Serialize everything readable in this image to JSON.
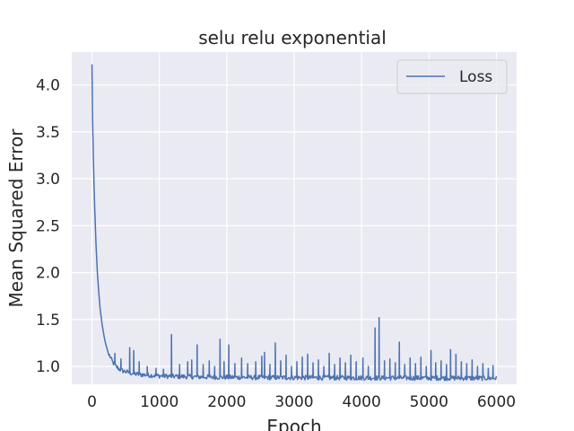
{
  "chart_data": {
    "type": "line",
    "title": "selu relu exponential",
    "xlabel": "Epoch",
    "ylabel": "Mean Squared Error",
    "xlim": [
      -300,
      6300
    ],
    "ylim": [
      0.81,
      4.35
    ],
    "xticks": [
      0,
      1000,
      2000,
      3000,
      4000,
      5000,
      6000
    ],
    "yticks": [
      1.0,
      1.5,
      2.0,
      2.5,
      3.0,
      3.5,
      4.0
    ],
    "xtick_labels": [
      "0",
      "1000",
      "2000",
      "3000",
      "4000",
      "5000",
      "6000"
    ],
    "ytick_labels": [
      "1.0",
      "1.5",
      "2.0",
      "2.5",
      "3.0",
      "3.5",
      "4.0"
    ],
    "grid": true,
    "legend_position": "top-right",
    "series": [
      {
        "name": "Loss",
        "color": "#4c72b0",
        "x": [
          0,
          5,
          10,
          20,
          30,
          40,
          50,
          60,
          80,
          100,
          120,
          150,
          180,
          200,
          250,
          300,
          350,
          400,
          450,
          500,
          550,
          600,
          700,
          800,
          900,
          1000,
          1200,
          1500,
          2000,
          2500,
          3000,
          3500,
          4000,
          4500,
          5000,
          5500,
          6000
        ],
        "values": [
          4.22,
          3.9,
          3.6,
          3.25,
          2.95,
          2.7,
          2.5,
          2.3,
          2.0,
          1.8,
          1.62,
          1.45,
          1.32,
          1.25,
          1.12,
          1.04,
          0.99,
          0.96,
          0.94,
          0.93,
          0.92,
          0.91,
          0.9,
          0.895,
          0.89,
          0.885,
          0.88,
          0.875,
          0.87,
          0.868,
          0.866,
          0.865,
          0.864,
          0.863,
          0.862,
          0.861,
          0.86
        ],
        "spikes": [
          {
            "x": 340,
            "y": 1.14
          },
          {
            "x": 430,
            "y": 1.08
          },
          {
            "x": 560,
            "y": 1.2
          },
          {
            "x": 620,
            "y": 1.17
          },
          {
            "x": 700,
            "y": 1.05
          },
          {
            "x": 820,
            "y": 1.0
          },
          {
            "x": 950,
            "y": 0.98
          },
          {
            "x": 1060,
            "y": 0.97
          },
          {
            "x": 1180,
            "y": 1.34
          },
          {
            "x": 1300,
            "y": 1.02
          },
          {
            "x": 1420,
            "y": 1.05
          },
          {
            "x": 1480,
            "y": 1.07
          },
          {
            "x": 1560,
            "y": 1.23
          },
          {
            "x": 1650,
            "y": 1.02
          },
          {
            "x": 1740,
            "y": 1.06
          },
          {
            "x": 1820,
            "y": 1.0
          },
          {
            "x": 1900,
            "y": 1.29
          },
          {
            "x": 1960,
            "y": 1.05
          },
          {
            "x": 2030,
            "y": 1.23
          },
          {
            "x": 2120,
            "y": 1.03
          },
          {
            "x": 2220,
            "y": 1.09
          },
          {
            "x": 2310,
            "y": 1.03
          },
          {
            "x": 2430,
            "y": 1.05
          },
          {
            "x": 2520,
            "y": 1.11
          },
          {
            "x": 2560,
            "y": 1.15
          },
          {
            "x": 2640,
            "y": 1.02
          },
          {
            "x": 2720,
            "y": 1.25
          },
          {
            "x": 2800,
            "y": 1.06
          },
          {
            "x": 2880,
            "y": 1.12
          },
          {
            "x": 2960,
            "y": 1.0
          },
          {
            "x": 3040,
            "y": 1.05
          },
          {
            "x": 3120,
            "y": 1.1
          },
          {
            "x": 3200,
            "y": 1.13
          },
          {
            "x": 3280,
            "y": 1.04
          },
          {
            "x": 3360,
            "y": 1.07
          },
          {
            "x": 3440,
            "y": 1.0
          },
          {
            "x": 3520,
            "y": 1.14
          },
          {
            "x": 3600,
            "y": 1.02
          },
          {
            "x": 3680,
            "y": 1.09
          },
          {
            "x": 3760,
            "y": 1.04
          },
          {
            "x": 3840,
            "y": 1.12
          },
          {
            "x": 3920,
            "y": 1.05
          },
          {
            "x": 4020,
            "y": 1.09
          },
          {
            "x": 4100,
            "y": 1.0
          },
          {
            "x": 4200,
            "y": 1.41
          },
          {
            "x": 4260,
            "y": 1.52
          },
          {
            "x": 4340,
            "y": 1.06
          },
          {
            "x": 4420,
            "y": 1.08
          },
          {
            "x": 4500,
            "y": 1.04
          },
          {
            "x": 4560,
            "y": 1.26
          },
          {
            "x": 4640,
            "y": 1.02
          },
          {
            "x": 4720,
            "y": 1.09
          },
          {
            "x": 4800,
            "y": 1.03
          },
          {
            "x": 4880,
            "y": 1.1
          },
          {
            "x": 4960,
            "y": 1.0
          },
          {
            "x": 5030,
            "y": 1.17
          },
          {
            "x": 5100,
            "y": 1.04
          },
          {
            "x": 5180,
            "y": 1.06
          },
          {
            "x": 5260,
            "y": 1.02
          },
          {
            "x": 5320,
            "y": 1.18
          },
          {
            "x": 5400,
            "y": 1.13
          },
          {
            "x": 5480,
            "y": 1.05
          },
          {
            "x": 5560,
            "y": 1.03
          },
          {
            "x": 5640,
            "y": 1.07
          },
          {
            "x": 5720,
            "y": 1.0
          },
          {
            "x": 5800,
            "y": 1.03
          },
          {
            "x": 5880,
            "y": 0.98
          },
          {
            "x": 5950,
            "y": 1.01
          }
        ]
      }
    ]
  }
}
